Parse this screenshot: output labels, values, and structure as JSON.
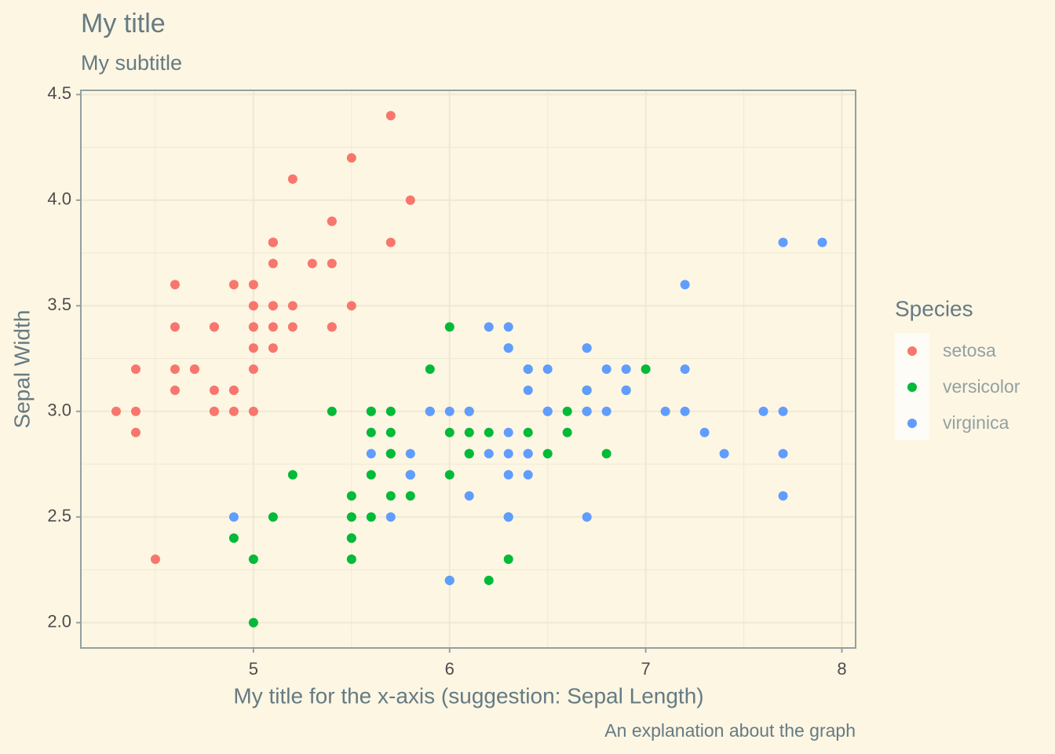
{
  "chart_data": {
    "type": "scatter",
    "title": "My title",
    "subtitle": "My subtitle",
    "x_label": "My title for the x-axis (suggestion: Sepal Length)",
    "y_label": "Sepal Width",
    "caption": "An explanation about the graph",
    "legend_title": "Species",
    "legend_position": "right",
    "grid": true,
    "xlim": [
      4.12,
      8.07
    ],
    "ylim": [
      1.88,
      4.52
    ],
    "xticks": [
      5,
      6,
      7,
      8
    ],
    "yticks": [
      {
        "value": 2,
        "label": "2.0"
      },
      2.5,
      {
        "value": 3,
        "label": "3.0"
      },
      3.5,
      {
        "value": 4,
        "label": "4.0"
      },
      4.5
    ],
    "x_minor_ticks": [
      4.5,
      5.5,
      6.5,
      7.5
    ],
    "y_minor_ticks": [
      2.25,
      2.75,
      3.25,
      3.75,
      4.25
    ],
    "series": [
      {
        "name": "setosa",
        "color": "#F8766D",
        "x": [
          5.1,
          4.9,
          4.7,
          4.6,
          5.0,
          5.4,
          4.6,
          5.0,
          4.4,
          4.9,
          5.4,
          4.8,
          4.8,
          4.3,
          5.8,
          5.7,
          5.4,
          5.1,
          5.7,
          5.1,
          5.4,
          5.1,
          4.6,
          5.1,
          4.8,
          5.0,
          5.0,
          5.2,
          5.2,
          4.7,
          4.8,
          5.4,
          5.2,
          5.5,
          4.9,
          5.0,
          5.5,
          4.9,
          4.4,
          5.1,
          5.0,
          4.5,
          4.4,
          5.0,
          5.1,
          4.8,
          5.1,
          4.6,
          5.3,
          5.0
        ],
        "values": [
          3.5,
          3.0,
          3.2,
          3.1,
          3.6,
          3.9,
          3.4,
          3.4,
          2.9,
          3.1,
          3.7,
          3.4,
          3.0,
          3.0,
          4.0,
          4.4,
          3.9,
          3.5,
          3.8,
          3.8,
          3.4,
          3.7,
          3.6,
          3.3,
          3.4,
          3.0,
          3.4,
          3.5,
          3.4,
          3.2,
          3.1,
          3.4,
          4.1,
          4.2,
          3.1,
          3.2,
          3.5,
          3.6,
          3.0,
          3.4,
          3.5,
          2.3,
          3.2,
          3.5,
          3.8,
          3.0,
          3.8,
          3.2,
          3.7,
          3.3
        ]
      },
      {
        "name": "versicolor",
        "color": "#00BA38",
        "x": [
          7.0,
          6.4,
          6.9,
          5.5,
          6.5,
          5.7,
          6.3,
          4.9,
          6.6,
          5.2,
          5.0,
          5.9,
          6.0,
          6.1,
          5.6,
          6.7,
          5.6,
          5.8,
          6.2,
          5.6,
          5.9,
          6.1,
          6.3,
          6.1,
          6.4,
          6.6,
          6.8,
          6.7,
          6.0,
          5.7,
          5.5,
          5.5,
          5.8,
          6.0,
          5.4,
          6.0,
          6.7,
          6.3,
          5.6,
          5.5,
          5.5,
          6.1,
          5.8,
          5.0,
          5.6,
          5.7,
          5.7,
          6.2,
          5.1,
          5.7
        ],
        "values": [
          3.2,
          3.2,
          3.1,
          2.3,
          2.8,
          2.8,
          3.3,
          2.4,
          2.9,
          2.7,
          2.0,
          3.0,
          2.2,
          2.9,
          2.9,
          3.1,
          3.0,
          2.7,
          2.2,
          2.5,
          3.2,
          2.8,
          2.5,
          2.8,
          2.9,
          3.0,
          2.8,
          3.0,
          2.9,
          2.6,
          2.4,
          2.4,
          2.7,
          2.7,
          3.0,
          3.4,
          3.1,
          2.3,
          3.0,
          2.5,
          2.6,
          3.0,
          2.6,
          2.3,
          2.7,
          3.0,
          2.9,
          2.9,
          2.5,
          2.8
        ]
      },
      {
        "name": "virginica",
        "color": "#619CFF",
        "x": [
          6.3,
          5.8,
          7.1,
          6.3,
          6.5,
          7.6,
          4.9,
          7.3,
          6.7,
          7.2,
          6.5,
          6.4,
          6.8,
          5.7,
          5.8,
          6.4,
          6.5,
          7.7,
          7.7,
          6.0,
          6.9,
          5.6,
          7.7,
          6.3,
          6.7,
          7.2,
          6.2,
          6.1,
          6.4,
          7.2,
          7.4,
          7.9,
          6.4,
          6.3,
          6.1,
          7.7,
          6.3,
          6.4,
          6.0,
          6.9,
          6.7,
          6.9,
          5.8,
          6.8,
          6.7,
          6.7,
          6.3,
          6.5,
          6.2,
          5.9
        ],
        "values": [
          3.3,
          2.7,
          3.0,
          2.9,
          3.0,
          3.0,
          2.5,
          2.9,
          2.5,
          3.6,
          3.2,
          2.7,
          3.0,
          2.5,
          2.8,
          3.2,
          3.0,
          3.8,
          2.6,
          2.2,
          3.2,
          2.8,
          2.8,
          2.7,
          3.3,
          3.2,
          2.8,
          3.0,
          2.8,
          3.0,
          2.8,
          3.8,
          2.8,
          2.8,
          2.6,
          3.0,
          3.4,
          3.1,
          3.0,
          3.1,
          3.1,
          3.1,
          2.7,
          3.2,
          3.3,
          3.0,
          2.5,
          3.0,
          3.4,
          3.0
        ]
      }
    ]
  }
}
